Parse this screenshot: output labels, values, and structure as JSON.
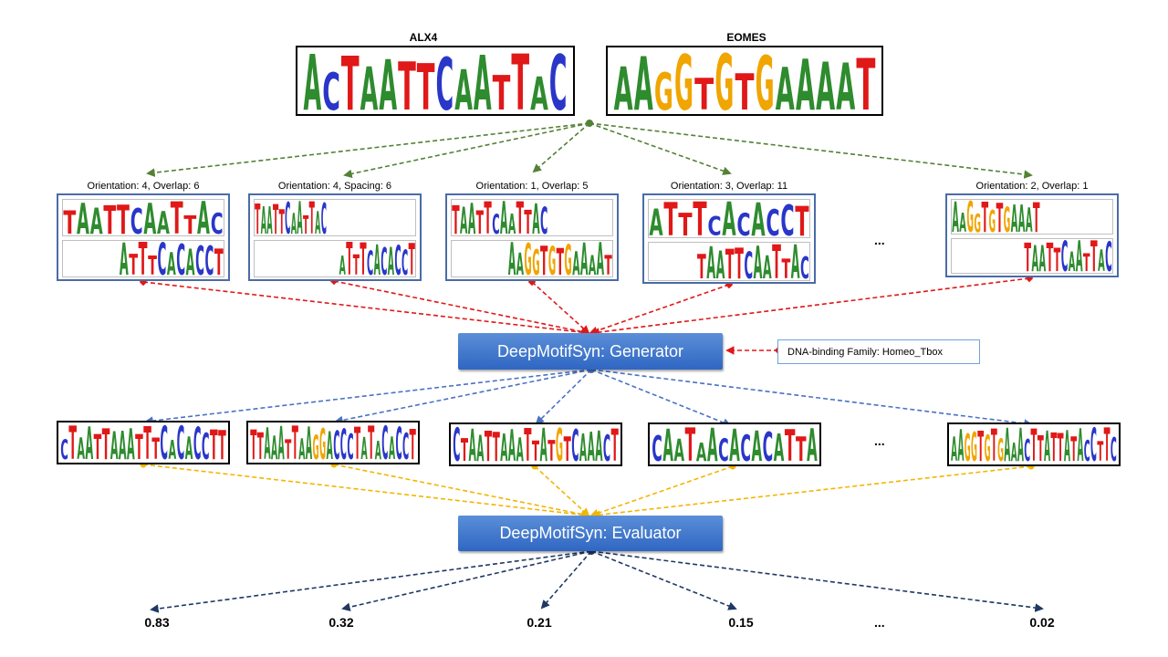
{
  "motifs": {
    "alx4": {
      "title": "ALX4",
      "sequence": "ACTAATTCAATTAC"
    },
    "eomes": {
      "title": "EOMES",
      "sequence": "AAGGTGTGAAAAT"
    }
  },
  "combinations": [
    {
      "label": "Orientation: 4, Overlap: 6",
      "top": "TAATTCAATTAC",
      "bottom": "ATTTCACACCT"
    },
    {
      "label": "Orientation: 4, Spacing: 6",
      "top": "TAATTCAATTAC",
      "bottom": "ATTTCACACCT"
    },
    {
      "label": "Orientation: 1, Overlap: 5",
      "top": "TAATTCAATTAC",
      "bottom": "AAGGTGTGAAAAT"
    },
    {
      "label": "Orientation: 3, Overlap: 11",
      "top": "ATTTCACACCT",
      "bottom": "TAATTCAATTAC"
    },
    {
      "label": "Orientation: 2, Overlap: 1",
      "top": "AAGGTGTGAAAT",
      "bottom": "TAATTCAATTAC"
    }
  ],
  "combinations_ellipsis": "...",
  "generator": {
    "label": "DeepMotifSyn: Generator"
  },
  "family": {
    "label": "DNA-binding Family: Homeo_Tbox"
  },
  "generated": [
    {
      "sequence": "CTAATTAAATTTCACACCTT"
    },
    {
      "sequence": "TTAAATTAAGGACCCTATACACCT"
    },
    {
      "sequence": "CTAATTAAATTATGTCAAACT"
    },
    {
      "sequence": "CAATAACACACATTA"
    },
    {
      "sequence": "AAGGTGTGAAACTTATTATACCTTC"
    }
  ],
  "generated_ellipsis": "...",
  "evaluator": {
    "label": "DeepMotifSyn: Evaluator"
  },
  "scores": [
    "0.83",
    "0.32",
    "0.21",
    "0.15",
    "0.02"
  ],
  "scores_ellipsis": "...",
  "colors": {
    "A": "#2e8b2e",
    "C": "#2a36c8",
    "G": "#f0a500",
    "T": "#e01818",
    "green_arrow": "#538135",
    "red_arrow": "#e01818",
    "blue_arrow": "#4a72c4",
    "yellow_arrow": "#f2b600",
    "navy_arrow": "#1f3864",
    "combo_border": "#4a6ca8",
    "model_fill": "#3a72cc"
  }
}
